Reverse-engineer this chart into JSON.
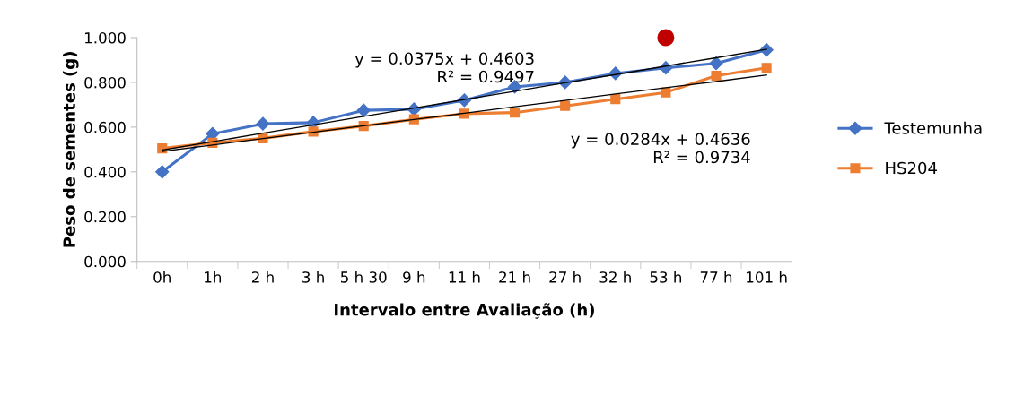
{
  "chart_data": {
    "type": "line",
    "xlabel": "Intervalo entre Avaliação (h)",
    "ylabel": "Peso de sementes (g)",
    "categories": [
      "0h",
      "1h",
      "2 h",
      "3 h",
      "5 h 30",
      "9 h",
      "11 h",
      "21 h",
      "27 h",
      "32 h",
      "53 h",
      "77 h",
      "101 h"
    ],
    "ylim": [
      0,
      1
    ],
    "yticks": [
      {
        "value": 0,
        "label": "0.000"
      },
      {
        "value": 0.2,
        "label": "0.200"
      },
      {
        "value": 0.4,
        "label": "0.400"
      },
      {
        "value": 0.6,
        "label": "0.600"
      },
      {
        "value": 0.8,
        "label": "0.800"
      },
      {
        "value": 1,
        "label": "1.000"
      }
    ],
    "grid": false,
    "legend": "right",
    "series": [
      {
        "name": "Testemunha",
        "color": "#4472c4",
        "marker": "diamond",
        "values": [
          0.4,
          0.57,
          0.615,
          0.62,
          0.675,
          0.68,
          0.72,
          0.78,
          0.8,
          0.84,
          0.865,
          0.885,
          0.945
        ]
      },
      {
        "name": "HS204",
        "color": "#ed7d31",
        "marker": "square",
        "values": [
          0.505,
          0.53,
          0.55,
          0.58,
          0.605,
          0.635,
          0.66,
          0.665,
          0.695,
          0.725,
          0.755,
          0.83,
          0.865
        ]
      },
      {
        "color": "#000000",
        "marker": "none",
        "values": [
          0.498,
          0.535,
          0.573,
          0.61,
          0.648,
          0.685,
          0.723,
          0.76,
          0.798,
          0.835,
          0.873,
          0.91,
          0.948
        ]
      },
      {
        "color": "#000000",
        "marker": "none",
        "values": [
          0.492,
          0.52,
          0.549,
          0.577,
          0.606,
          0.634,
          0.662,
          0.691,
          0.719,
          0.748,
          0.776,
          0.804,
          0.833
        ]
      },
      {
        "type": "scatter",
        "color": "#c00000",
        "marker": "circle",
        "values": [
          null,
          null,
          null,
          null,
          null,
          null,
          null,
          null,
          null,
          null,
          1.0,
          null,
          null
        ]
      }
    ],
    "annotations": [
      "y = 0.0375x + 0.4603\nR² = 0.9497",
      "y = 0.0284x + 0.4636\nR² = 0.9734"
    ]
  }
}
